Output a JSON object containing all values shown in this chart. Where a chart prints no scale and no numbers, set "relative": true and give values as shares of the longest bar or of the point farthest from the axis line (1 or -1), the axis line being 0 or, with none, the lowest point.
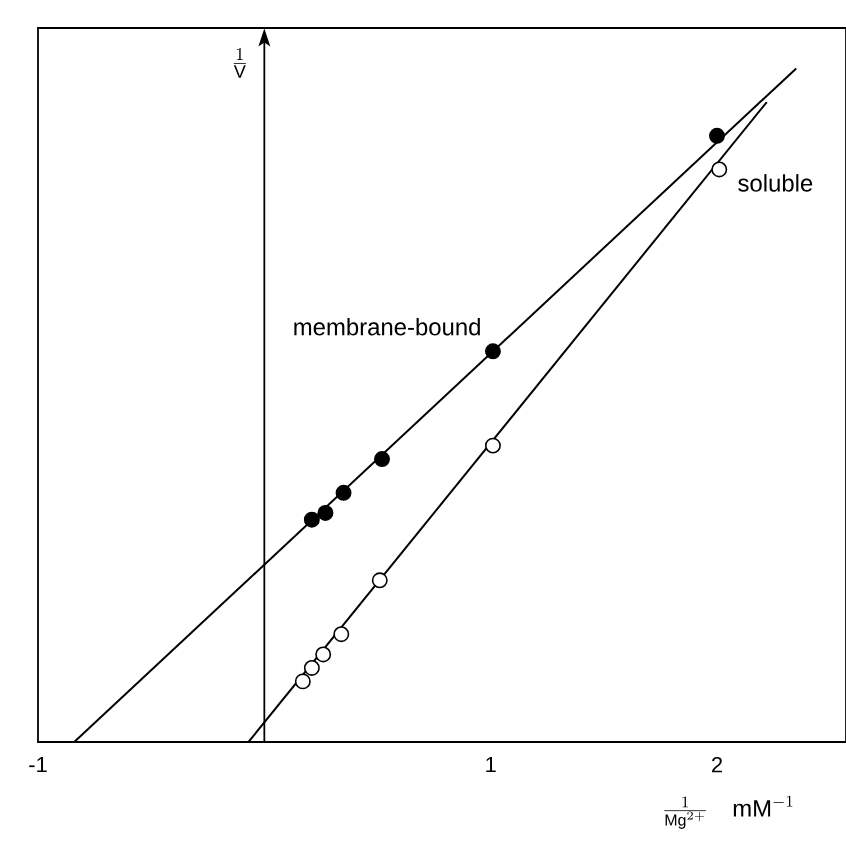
{
  "chart_data": {
    "type": "scatter",
    "relative": true,
    "marker": "circle",
    "xlabel": "\\frac{1}{\\mathrm{Mg}^{2+}}\\quad \\mathrm{mM}^{-1}",
    "ylabel": "\\frac{1}{\\mathrm{V}}",
    "xlim": [
      -1,
      2.57
    ],
    "xticks": [
      -1,
      1,
      2
    ],
    "series": [
      {
        "name": "membrane-bound",
        "color": "#000000",
        "x": [
          0.21,
          0.27,
          0.35,
          0.52,
          1.01,
          2.0
        ],
        "values": [
          0.33,
          0.34,
          0.37,
          0.42,
          0.58,
          0.9
        ]
      },
      {
        "name": "soluble",
        "color": "#ffffff",
        "x": [
          0.17,
          0.21,
          0.26,
          0.34,
          0.51,
          1.01,
          2.01
        ],
        "values": [
          0.09,
          0.11,
          0.13,
          0.16,
          0.24,
          0.44,
          0.85
        ]
      },
      {
        "type": "line",
        "marker": "none",
        "color": "#000000",
        "x": [
          -0.84,
          2.35
        ],
        "values": [
          0,
          1.0
        ]
      },
      {
        "type": "line",
        "marker": "none",
        "color": "#000000",
        "x": [
          -0.07,
          2.22
        ],
        "values": [
          0,
          0.95
        ]
      }
    ]
  }
}
